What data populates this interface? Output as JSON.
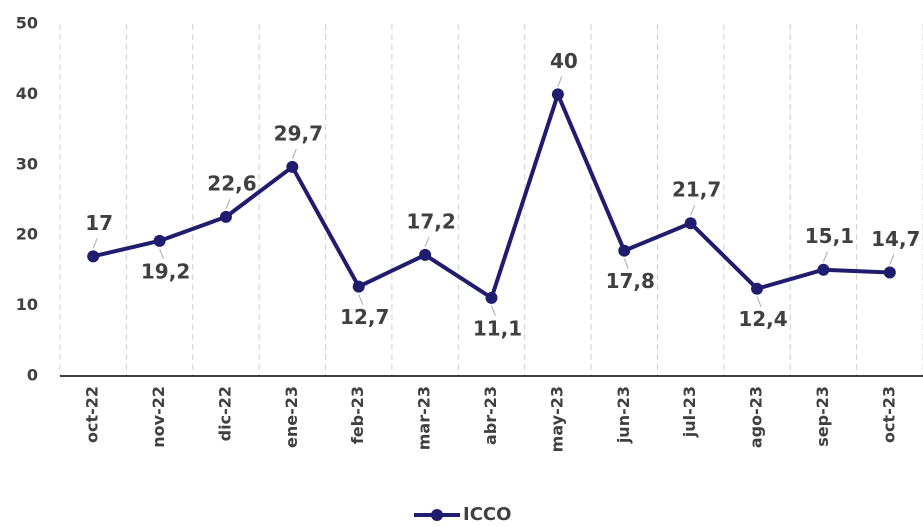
{
  "chart_data": {
    "type": "line",
    "categories": [
      "oct-22",
      "nov-22",
      "dic-22",
      "ene-23",
      "feb-23",
      "mar-23",
      "abr-23",
      "may-23",
      "jun-23",
      "jul-23",
      "ago-23",
      "sep-23",
      "oct-23"
    ],
    "series": [
      {
        "name": "ICCO",
        "color": "#201c6e",
        "values": [
          17,
          19.2,
          22.6,
          29.7,
          12.7,
          17.2,
          11.1,
          40,
          17.8,
          21.7,
          12.4,
          15.1,
          14.7
        ],
        "value_labels": [
          "17",
          "19,2",
          "22,6",
          "29,7",
          "12,7",
          "17,2",
          "11,1",
          "40",
          "17,8",
          "21,7",
          "12,4",
          "15,1",
          "14,7"
        ]
      }
    ],
    "ylim": [
      0,
      50
    ],
    "yticks": [
      0,
      10,
      20,
      30,
      40,
      50
    ],
    "grid": true,
    "legend": "bottom"
  }
}
